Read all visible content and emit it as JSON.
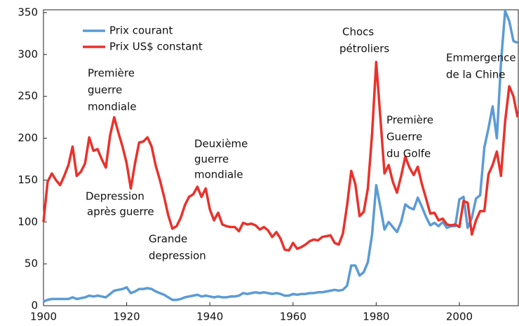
{
  "chart_data": {
    "type": "line",
    "x": [
      1900,
      1901,
      1902,
      1903,
      1904,
      1905,
      1906,
      1907,
      1908,
      1909,
      1910,
      1911,
      1912,
      1913,
      1914,
      1915,
      1916,
      1917,
      1918,
      1919,
      1920,
      1921,
      1922,
      1923,
      1924,
      1925,
      1926,
      1927,
      1928,
      1929,
      1930,
      1931,
      1932,
      1933,
      1934,
      1935,
      1936,
      1937,
      1938,
      1939,
      1940,
      1941,
      1942,
      1943,
      1944,
      1945,
      1946,
      1947,
      1948,
      1949,
      1950,
      1951,
      1952,
      1953,
      1954,
      1955,
      1956,
      1957,
      1958,
      1959,
      1960,
      1961,
      1962,
      1963,
      1964,
      1965,
      1966,
      1967,
      1968,
      1969,
      1970,
      1971,
      1972,
      1973,
      1974,
      1975,
      1976,
      1977,
      1978,
      1979,
      1980,
      1981,
      1982,
      1983,
      1984,
      1985,
      1986,
      1987,
      1988,
      1989,
      1990,
      1991,
      1992,
      1993,
      1994,
      1995,
      1996,
      1997,
      1998,
      1999,
      2000,
      2001,
      2002,
      2003,
      2004,
      2005,
      2006,
      2007,
      2008,
      2009,
      2010,
      2011,
      2012,
      2013,
      2014
    ],
    "series": [
      {
        "name": "Prix courant",
        "color": "#5b9bd5",
        "values": [
          5,
          7,
          8,
          8,
          8,
          8,
          8,
          10,
          8,
          9,
          10,
          12,
          11,
          12,
          11,
          10,
          14,
          18,
          19,
          20,
          22,
          15,
          17,
          20,
          20,
          21,
          20,
          17,
          15,
          13,
          10,
          7,
          7,
          8,
          10,
          11,
          12,
          13,
          11,
          12,
          11,
          10,
          11,
          10,
          10,
          11,
          11,
          12,
          15,
          14,
          15,
          16,
          15,
          16,
          15,
          14,
          15,
          14,
          12,
          12,
          14,
          13,
          14,
          14,
          15,
          15,
          16,
          16,
          17,
          18,
          19,
          18,
          19,
          24,
          48,
          48,
          36,
          40,
          52,
          85,
          144,
          118,
          91,
          100,
          94,
          88,
          100,
          121,
          117,
          115,
          129,
          118,
          106,
          96,
          99,
          95,
          100,
          93,
          95,
          95,
          127,
          130,
          93,
          105,
          128,
          132,
          189,
          212,
          238,
          200,
          290,
          352,
          340,
          316,
          314
        ]
      },
      {
        "name": "Prix US$ constant",
        "color": "#e8322b",
        "values": [
          100,
          148,
          158,
          150,
          144,
          155,
          168,
          190,
          155,
          160,
          170,
          201,
          185,
          187,
          175,
          165,
          203,
          225,
          207,
          190,
          170,
          140,
          170,
          195,
          196,
          201,
          190,
          167,
          150,
          130,
          108,
          92,
          95,
          105,
          120,
          130,
          133,
          142,
          130,
          140,
          115,
          102,
          111,
          97,
          95,
          94,
          94,
          89,
          99,
          97,
          98,
          96,
          91,
          94,
          90,
          82,
          88,
          80,
          67,
          66,
          75,
          68,
          70,
          73,
          77,
          79,
          78,
          82,
          83,
          84,
          75,
          73,
          86,
          120,
          161,
          145,
          107,
          112,
          140,
          205,
          291,
          225,
          158,
          168,
          148,
          135,
          155,
          178,
          165,
          156,
          166,
          145,
          128,
          110,
          111,
          102,
          104,
          97,
          96,
          97,
          94,
          125,
          123,
          85,
          102,
          113,
          113,
          157,
          168,
          184,
          155,
          220,
          262,
          250,
          225
        ]
      }
    ],
    "xlim": [
      1900,
      2014
    ],
    "ylim": [
      0,
      350
    ],
    "xticks": [
      1900,
      1920,
      1940,
      1960,
      1980,
      2000
    ],
    "yticks": [
      0,
      50,
      100,
      150,
      200,
      250,
      300,
      350
    ],
    "legend": "upper left",
    "annotations": [
      [
        "Première",
        "guerre",
        "mondiale"
      ],
      [
        "Depression",
        "après guerre"
      ],
      [
        "Grande",
        "depression"
      ],
      [
        "Deuxième",
        "guerre",
        "mondiale"
      ],
      [
        "Chocs",
        "pétroliers"
      ],
      [
        "Première",
        "Guerre",
        "du Golfe"
      ],
      [
        "Emmergence",
        "de la Chine"
      ]
    ]
  }
}
